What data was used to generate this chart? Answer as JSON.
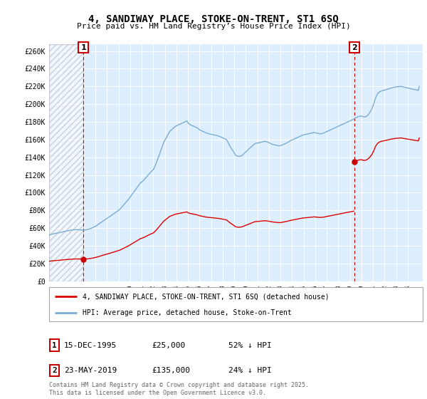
{
  "title": "4, SANDIWAY PLACE, STOKE-ON-TRENT, ST1 6SQ",
  "subtitle": "Price paid vs. HM Land Registry’s House Price Index (HPI)",
  "yticks": [
    0,
    20000,
    40000,
    60000,
    80000,
    100000,
    120000,
    140000,
    160000,
    180000,
    200000,
    220000,
    240000,
    260000
  ],
  "ytick_labels": [
    "£0",
    "£20K",
    "£40K",
    "£60K",
    "£80K",
    "£100K",
    "£120K",
    "£140K",
    "£160K",
    "£180K",
    "£200K",
    "£220K",
    "£240K",
    "£260K"
  ],
  "ylim": [
    0,
    268000
  ],
  "xlim": [
    1993.0,
    2025.3
  ],
  "xtick_years": [
    1994,
    1995,
    1996,
    1997,
    1998,
    1999,
    2000,
    2001,
    2002,
    2003,
    2004,
    2005,
    2006,
    2007,
    2008,
    2009,
    2010,
    2011,
    2012,
    2013,
    2014,
    2015,
    2016,
    2017,
    2018,
    2019,
    2020,
    2021,
    2022,
    2023,
    2024
  ],
  "sale1_x": 1995.96,
  "sale1_y": 25000,
  "sale1_label": "1",
  "sale2_x": 2019.39,
  "sale2_y": 135000,
  "sale2_label": "2",
  "red_line_color": "#dd0000",
  "blue_line_color": "#7aadd4",
  "sale_dot_color": "#cc0000",
  "annotation_box_color": "#cc0000",
  "dashed_line_color": "#cc0000",
  "background_chart_color": "#ddeeff",
  "grid_color": "#ffffff",
  "legend_label_red": "4, SANDIWAY PLACE, STOKE-ON-TRENT, ST1 6SQ (detached house)",
  "legend_label_blue": "HPI: Average price, detached house, Stoke-on-Trent",
  "footnote": "Contains HM Land Registry data © Crown copyright and database right 2025.\nThis data is licensed under the Open Government Licence v3.0.",
  "table_rows": [
    {
      "num": "1",
      "date": "15-DEC-1995",
      "price": "£25,000",
      "hpi": "52% ↓ HPI"
    },
    {
      "num": "2",
      "date": "23-MAY-2019",
      "price": "£135,000",
      "hpi": "24% ↓ HPI"
    }
  ],
  "hpi_x": [
    1993.0,
    1993.083,
    1993.167,
    1993.25,
    1993.333,
    1993.417,
    1993.5,
    1993.583,
    1993.667,
    1993.75,
    1993.833,
    1993.917,
    1994.0,
    1994.083,
    1994.167,
    1994.25,
    1994.333,
    1994.417,
    1994.5,
    1994.583,
    1994.667,
    1994.75,
    1994.833,
    1994.917,
    1995.0,
    1995.083,
    1995.167,
    1995.25,
    1995.333,
    1995.417,
    1995.5,
    1995.583,
    1995.667,
    1995.75,
    1995.833,
    1995.917,
    1996.0,
    1996.083,
    1996.167,
    1996.25,
    1996.333,
    1996.417,
    1996.5,
    1996.583,
    1996.667,
    1996.75,
    1996.833,
    1996.917,
    1997.0,
    1997.083,
    1997.167,
    1997.25,
    1997.333,
    1997.417,
    1997.5,
    1997.583,
    1997.667,
    1997.75,
    1997.833,
    1997.917,
    1998.0,
    1998.083,
    1998.167,
    1998.25,
    1998.333,
    1998.417,
    1998.5,
    1998.583,
    1998.667,
    1998.75,
    1998.833,
    1998.917,
    1999.0,
    1999.083,
    1999.167,
    1999.25,
    1999.333,
    1999.417,
    1999.5,
    1999.583,
    1999.667,
    1999.75,
    1999.833,
    1999.917,
    2000.0,
    2000.083,
    2000.167,
    2000.25,
    2000.333,
    2000.417,
    2000.5,
    2000.583,
    2000.667,
    2000.75,
    2000.833,
    2000.917,
    2001.0,
    2001.083,
    2001.167,
    2001.25,
    2001.333,
    2001.417,
    2001.5,
    2001.583,
    2001.667,
    2001.75,
    2001.833,
    2001.917,
    2002.0,
    2002.083,
    2002.167,
    2002.25,
    2002.333,
    2002.417,
    2002.5,
    2002.583,
    2002.667,
    2002.75,
    2002.833,
    2002.917,
    2003.0,
    2003.083,
    2003.167,
    2003.25,
    2003.333,
    2003.417,
    2003.5,
    2003.583,
    2003.667,
    2003.75,
    2003.833,
    2003.917,
    2004.0,
    2004.083,
    2004.167,
    2004.25,
    2004.333,
    2004.417,
    2004.5,
    2004.583,
    2004.667,
    2004.75,
    2004.833,
    2004.917,
    2005.0,
    2005.083,
    2005.167,
    2005.25,
    2005.333,
    2005.417,
    2005.5,
    2005.583,
    2005.667,
    2005.75,
    2005.833,
    2005.917,
    2006.0,
    2006.083,
    2006.167,
    2006.25,
    2006.333,
    2006.417,
    2006.5,
    2006.583,
    2006.667,
    2006.75,
    2006.833,
    2006.917,
    2007.0,
    2007.083,
    2007.167,
    2007.25,
    2007.333,
    2007.417,
    2007.5,
    2007.583,
    2007.667,
    2007.75,
    2007.833,
    2007.917,
    2008.0,
    2008.083,
    2008.167,
    2008.25,
    2008.333,
    2008.417,
    2008.5,
    2008.583,
    2008.667,
    2008.75,
    2008.833,
    2008.917,
    2009.0,
    2009.083,
    2009.167,
    2009.25,
    2009.333,
    2009.417,
    2009.5,
    2009.583,
    2009.667,
    2009.75,
    2009.833,
    2009.917,
    2010.0,
    2010.083,
    2010.167,
    2010.25,
    2010.333,
    2010.417,
    2010.5,
    2010.583,
    2010.667,
    2010.75,
    2010.833,
    2010.917,
    2011.0,
    2011.083,
    2011.167,
    2011.25,
    2011.333,
    2011.417,
    2011.5,
    2011.583,
    2011.667,
    2011.75,
    2011.833,
    2011.917,
    2012.0,
    2012.083,
    2012.167,
    2012.25,
    2012.333,
    2012.417,
    2012.5,
    2012.583,
    2012.667,
    2012.75,
    2012.833,
    2012.917,
    2013.0,
    2013.083,
    2013.167,
    2013.25,
    2013.333,
    2013.417,
    2013.5,
    2013.583,
    2013.667,
    2013.75,
    2013.833,
    2013.917,
    2014.0,
    2014.083,
    2014.167,
    2014.25,
    2014.333,
    2014.417,
    2014.5,
    2014.583,
    2014.667,
    2014.75,
    2014.833,
    2014.917,
    2015.0,
    2015.083,
    2015.167,
    2015.25,
    2015.333,
    2015.417,
    2015.5,
    2015.583,
    2015.667,
    2015.75,
    2015.833,
    2015.917,
    2016.0,
    2016.083,
    2016.167,
    2016.25,
    2016.333,
    2016.417,
    2016.5,
    2016.583,
    2016.667,
    2016.75,
    2016.833,
    2016.917,
    2017.0,
    2017.083,
    2017.167,
    2017.25,
    2017.333,
    2017.417,
    2017.5,
    2017.583,
    2017.667,
    2017.75,
    2017.833,
    2017.917,
    2018.0,
    2018.083,
    2018.167,
    2018.25,
    2018.333,
    2018.417,
    2018.5,
    2018.583,
    2018.667,
    2018.75,
    2018.833,
    2018.917,
    2019.0,
    2019.083,
    2019.167,
    2019.25,
    2019.333,
    2019.417,
    2019.5,
    2019.583,
    2019.667,
    2019.75,
    2019.833,
    2019.917,
    2020.0,
    2020.083,
    2020.167,
    2020.25,
    2020.333,
    2020.417,
    2020.5,
    2020.583,
    2020.667,
    2020.75,
    2020.833,
    2020.917,
    2021.0,
    2021.083,
    2021.167,
    2021.25,
    2021.333,
    2021.417,
    2021.5,
    2021.583,
    2021.667,
    2021.75,
    2021.833,
    2021.917,
    2022.0,
    2022.083,
    2022.167,
    2022.25,
    2022.333,
    2022.417,
    2022.5,
    2022.583,
    2022.667,
    2022.75,
    2022.833,
    2022.917,
    2023.0,
    2023.083,
    2023.167,
    2023.25,
    2023.333,
    2023.417,
    2023.5,
    2023.583,
    2023.667,
    2023.75,
    2023.833,
    2023.917,
    2024.0,
    2024.083,
    2024.167,
    2024.25,
    2024.333,
    2024.417,
    2024.5,
    2024.583,
    2024.667,
    2024.75,
    2024.833,
    2024.917,
    2025.0
  ],
  "hpi_y": [
    52000,
    52500,
    53000,
    53200,
    53500,
    53800,
    54000,
    54200,
    54400,
    54600,
    54800,
    55000,
    55200,
    55500,
    55800,
    56000,
    56200,
    56500,
    56700,
    57000,
    57200,
    57400,
    57600,
    57800,
    57900,
    58000,
    58100,
    58200,
    58300,
    58400,
    58300,
    58200,
    58100,
    58000,
    57900,
    57800,
    57700,
    57900,
    58100,
    58300,
    58500,
    58800,
    59200,
    59600,
    60000,
    60500,
    61000,
    61500,
    62000,
    62800,
    63500,
    64200,
    65000,
    65800,
    66500,
    67300,
    68000,
    68800,
    69500,
    70300,
    71000,
    71800,
    72500,
    73200,
    74000,
    74800,
    75500,
    76200,
    77000,
    77800,
    78500,
    79200,
    80000,
    81000,
    82000,
    83200,
    84500,
    85800,
    87000,
    88200,
    89500,
    90800,
    92000,
    93500,
    95000,
    96500,
    98000,
    99500,
    101000,
    102500,
    104000,
    105500,
    107000,
    108500,
    110000,
    111500,
    112000,
    113000,
    114000,
    115200,
    116500,
    117800,
    119000,
    120200,
    121500,
    122800,
    124000,
    125000,
    126000,
    128000,
    130500,
    133000,
    136000,
    139000,
    142000,
    145000,
    148000,
    151000,
    154000,
    157000,
    159000,
    161000,
    163000,
    165000,
    167000,
    169000,
    170000,
    171000,
    172000,
    173000,
    174000,
    175000,
    175500,
    176000,
    176500,
    177000,
    177500,
    178000,
    178500,
    179000,
    179500,
    180000,
    180500,
    181000,
    179000,
    178000,
    177000,
    176500,
    176000,
    175500,
    175000,
    174500,
    174000,
    173500,
    173000,
    172000,
    171000,
    170500,
    170000,
    169500,
    169000,
    168500,
    168000,
    167500,
    167000,
    166800,
    166500,
    166200,
    166000,
    165800,
    165500,
    165200,
    165000,
    164800,
    164500,
    164200,
    164000,
    163500,
    163000,
    162500,
    162000,
    161500,
    161000,
    160500,
    160000,
    158000,
    156000,
    154000,
    152000,
    150000,
    148500,
    147000,
    145000,
    143000,
    142000,
    141500,
    141000,
    141000,
    141200,
    141500,
    142000,
    143000,
    144000,
    145000,
    146000,
    147000,
    148000,
    149000,
    150000,
    151000,
    152000,
    153000,
    154000,
    155000,
    155500,
    156000,
    156000,
    156200,
    156500,
    156800,
    157000,
    157200,
    157500,
    157800,
    158000,
    157800,
    157500,
    157000,
    156500,
    156000,
    155500,
    155000,
    154500,
    154200,
    154000,
    153800,
    153500,
    153200,
    153000,
    153000,
    153200,
    153500,
    154000,
    154500,
    155000,
    155500,
    156000,
    156500,
    157000,
    157800,
    158500,
    159000,
    159500,
    160000,
    160500,
    161000,
    161500,
    162000,
    162500,
    163000,
    163500,
    164000,
    164500,
    165000,
    165200,
    165500,
    165800,
    166000,
    166200,
    166500,
    166800,
    167000,
    167200,
    167500,
    167800,
    168000,
    167800,
    167500,
    167200,
    167000,
    166800,
    166500,
    166500,
    166800,
    167000,
    167500,
    168000,
    168500,
    169000,
    169500,
    170000,
    170500,
    171000,
    171500,
    172000,
    172500,
    173000,
    173500,
    174000,
    174500,
    175000,
    175500,
    176000,
    176500,
    177000,
    177500,
    178000,
    178500,
    179000,
    179500,
    180000,
    180500,
    181000,
    181500,
    182000,
    182500,
    183000,
    183800,
    184500,
    185000,
    185500,
    186000,
    186300,
    186500,
    186500,
    186200,
    185800,
    185500,
    185800,
    186200,
    187000,
    188000,
    189500,
    191000,
    193000,
    195000,
    198000,
    201000,
    205000,
    208000,
    210000,
    212000,
    213000,
    214000,
    214500,
    215000,
    215200,
    215500,
    215800,
    216200,
    216500,
    216800,
    217200,
    217500,
    218000,
    218200,
    218500,
    218800,
    219000,
    219200,
    219500,
    219600,
    219700,
    219800,
    219900,
    220000,
    219800,
    219500,
    219200,
    219000,
    218800,
    218500,
    218200,
    218000,
    217800,
    217500,
    217200,
    217000,
    216800,
    216500,
    216200,
    216000,
    215800,
    215500,
    220000
  ]
}
